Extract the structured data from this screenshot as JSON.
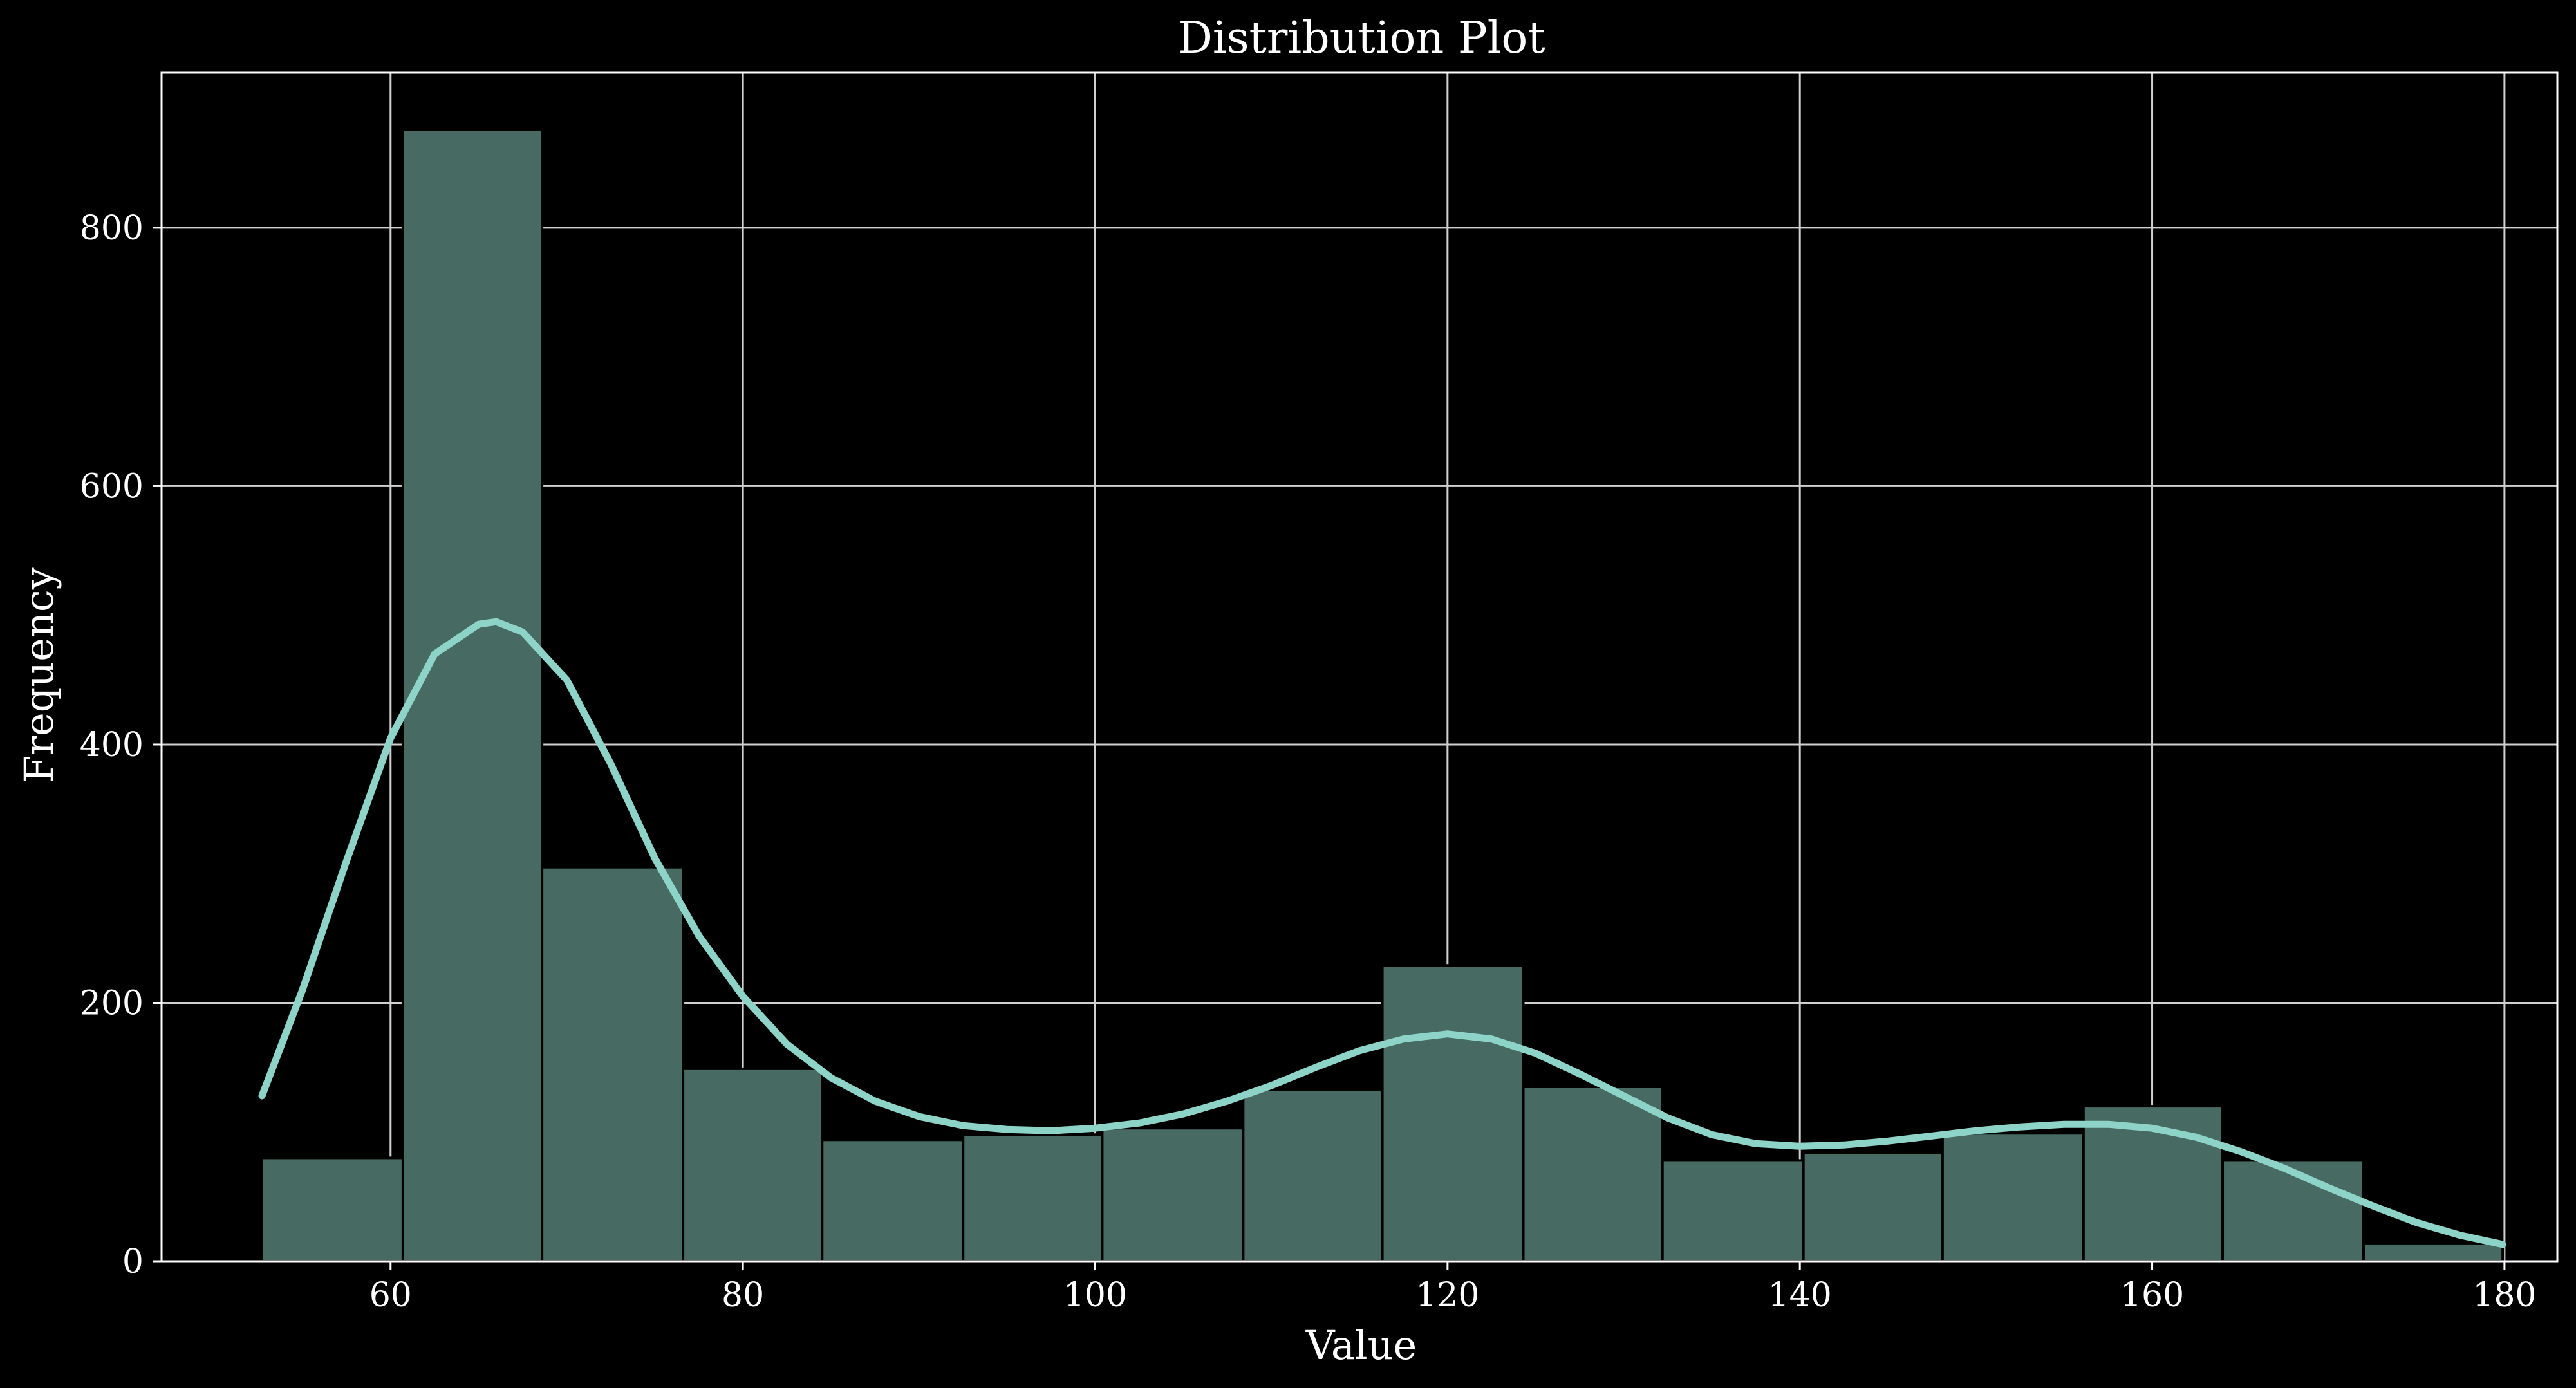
{
  "chart_data": {
    "type": "bar",
    "title": "Distribution Plot",
    "xlabel": "Value",
    "ylabel": "Frequency",
    "xlim": [
      47,
      183
    ],
    "ylim": [
      0,
      920
    ],
    "xticks": [
      60,
      80,
      100,
      120,
      140,
      160,
      180
    ],
    "yticks": [
      0,
      200,
      400,
      600,
      800
    ],
    "grid": true,
    "colors": {
      "background": "#000000",
      "bar_fill": "#476a63",
      "bar_edge": "#000000",
      "kde_line": "#8dd3c7",
      "grid": "#d0d0d0",
      "text": "#ffffff"
    },
    "bins": {
      "edges": [
        52.7,
        60.7,
        68.6,
        76.6,
        84.5,
        92.5,
        100.4,
        108.4,
        116.3,
        124.3,
        132.2,
        140.2,
        148.1,
        156.1,
        164.0,
        172.0,
        179.9
      ],
      "counts": [
        80,
        876,
        305,
        149,
        94,
        98,
        103,
        133,
        229,
        135,
        78,
        84,
        99,
        120,
        78,
        14
      ]
    },
    "kde": {
      "x": [
        52.7,
        55,
        57.5,
        60,
        62.5,
        65,
        66,
        67.5,
        70,
        72.5,
        75,
        77.5,
        80,
        82.5,
        85,
        87.5,
        90,
        92.5,
        95,
        97.5,
        100,
        102.5,
        105,
        107.5,
        110,
        112.5,
        115,
        117.5,
        120,
        122.5,
        125,
        127.5,
        130,
        132.5,
        135,
        137.5,
        140,
        142.5,
        145,
        147.5,
        150,
        152.5,
        155,
        157.5,
        160,
        162.5,
        165,
        167.5,
        170,
        172.5,
        175,
        177.5,
        179.9
      ],
      "y": [
        128,
        210,
        310,
        405,
        470,
        493,
        495,
        487,
        450,
        385,
        312,
        252,
        205,
        168,
        142,
        124,
        112,
        105,
        102,
        101,
        103,
        107,
        114,
        124,
        136,
        150,
        163,
        172,
        176,
        172,
        161,
        145,
        128,
        111,
        98,
        91,
        89,
        90,
        93,
        97,
        101,
        104,
        106,
        106,
        103,
        96,
        85,
        72,
        57,
        43,
        30,
        20,
        13
      ]
    }
  }
}
